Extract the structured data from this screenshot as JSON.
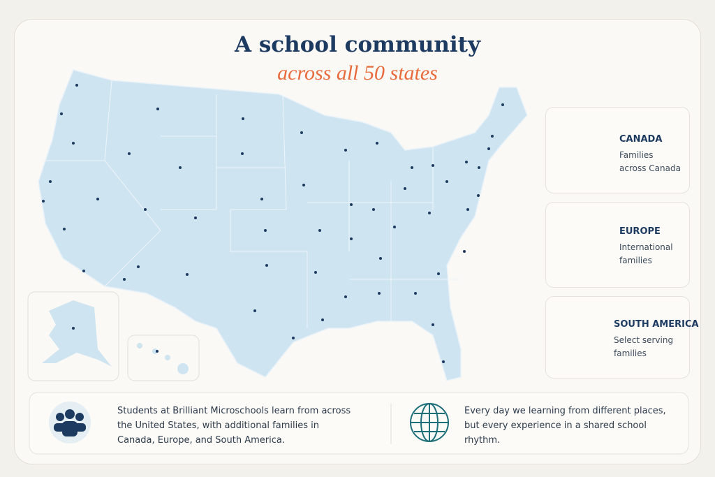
{
  "header": {
    "title": "A school community",
    "subtitle": "across all 50 states"
  },
  "regions": [
    {
      "name": "CANADA",
      "description": "Families across Canada"
    },
    {
      "name": "EUROPE",
      "description": "International families"
    },
    {
      "name": "SOUTH AMERICA",
      "description": "Select serving families"
    }
  ],
  "footer": {
    "left": "Students at Brilliant Microschools learn from across the United States, with additional families in Canada, Europe, and South America.",
    "right": "Every day we learning from different places, but every experience in a shared school rhythm."
  }
}
